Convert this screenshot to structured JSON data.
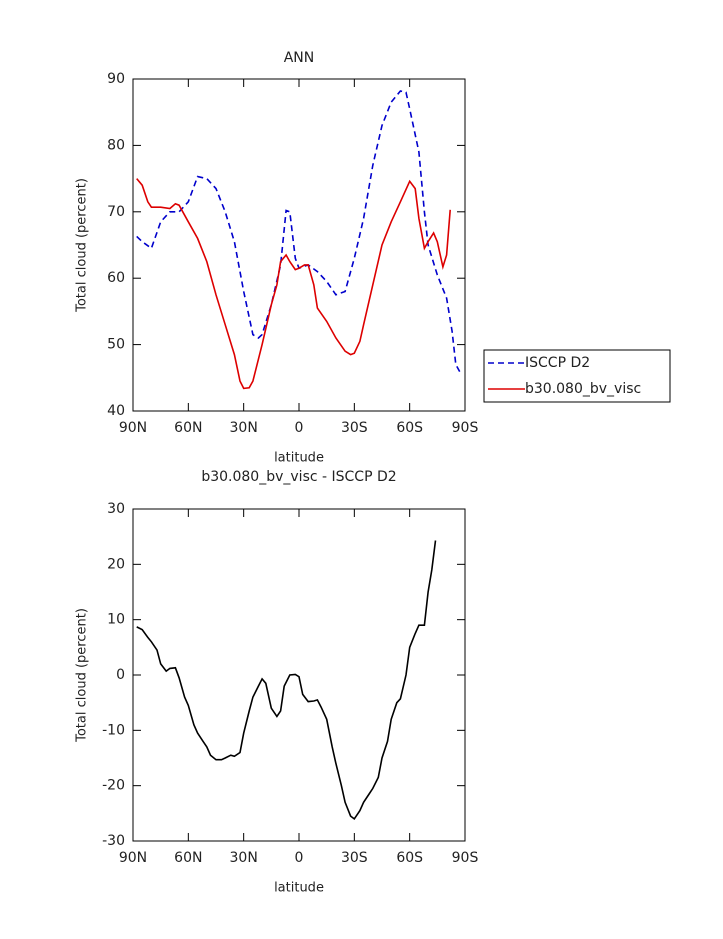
{
  "chart_data": [
    {
      "type": "line",
      "title": "ANN",
      "xlabel": "latitude",
      "ylabel": "Total cloud (percent)",
      "xlim": [
        90,
        -90
      ],
      "ylim": [
        40,
        90
      ],
      "xticks": [
        {
          "value": 90,
          "label": "90N"
        },
        {
          "value": 60,
          "label": "60N"
        },
        {
          "value": 30,
          "label": "30N"
        },
        0,
        {
          "value": -30,
          "label": "30S"
        },
        {
          "value": -60,
          "label": "60S"
        },
        {
          "value": -90,
          "label": "90S"
        }
      ],
      "yticks": [
        40,
        50,
        60,
        70,
        80,
        90
      ],
      "legend": "outside-right",
      "series": [
        {
          "name": "ISCCP D2",
          "color": "#0000cc",
          "line_style": "dashed",
          "x": [
            88,
            85,
            80,
            75,
            70,
            65,
            60,
            55,
            50,
            45,
            40,
            35,
            30,
            25,
            22,
            20,
            15,
            10,
            7,
            5,
            2,
            0,
            -5,
            -10,
            -15,
            -20,
            -25,
            -30,
            -35,
            -40,
            -45,
            -50,
            -55,
            -58,
            -60,
            -65,
            -68,
            -70,
            -75,
            -80,
            -83,
            -85,
            -88
          ],
          "values": [
            66.3,
            65.5,
            64.5,
            68.5,
            70,
            70,
            71.5,
            75.3,
            75,
            73.5,
            70,
            65.5,
            58,
            51.5,
            51,
            51.5,
            56,
            62,
            70.2,
            70,
            63,
            61.5,
            62,
            61,
            59.5,
            57.5,
            58,
            63,
            69,
            77,
            83,
            86.5,
            88.2,
            88,
            85.5,
            79,
            70,
            65,
            60.5,
            57,
            52,
            47,
            45.5
          ]
        },
        {
          "name": "b30.080_bv_visc",
          "color": "#dd0000",
          "line_style": "solid",
          "x": [
            88,
            85,
            82,
            80,
            75,
            70,
            67,
            65,
            60,
            55,
            50,
            45,
            40,
            35,
            32,
            30,
            27,
            25,
            20,
            15,
            12,
            10,
            7,
            5,
            2,
            0,
            -3,
            -5,
            -8,
            -10,
            -15,
            -20,
            -25,
            -28,
            -30,
            -33,
            -35,
            -40,
            -45,
            -50,
            -55,
            -60,
            -63,
            -65,
            -68,
            -70,
            -73,
            -75,
            -78,
            -80,
            -82
          ],
          "values": [
            75,
            74,
            71.5,
            70.7,
            70.7,
            70.5,
            71.2,
            71,
            68.5,
            66,
            62.5,
            57.5,
            53,
            48.5,
            44.5,
            43.4,
            43.5,
            44.5,
            50,
            56,
            59,
            62.5,
            63.5,
            62.5,
            61.3,
            61.5,
            62,
            62,
            59,
            55.5,
            53.5,
            51,
            49,
            48.5,
            48.7,
            50.5,
            53,
            59,
            65,
            68.5,
            71.5,
            74.6,
            73.5,
            69,
            64.5,
            65.5,
            66.8,
            65.5,
            61.7,
            63.5,
            70.3
          ]
        }
      ]
    },
    {
      "type": "line",
      "title": "b30.080_bv_visc - ISCCP D2",
      "xlabel": "latitude",
      "ylabel": "Total cloud (percent)",
      "xlim": [
        90,
        -90
      ],
      "ylim": [
        -30,
        30
      ],
      "xticks": [
        {
          "value": 90,
          "label": "90N"
        },
        {
          "value": 60,
          "label": "60N"
        },
        {
          "value": 30,
          "label": "30N"
        },
        0,
        {
          "value": -30,
          "label": "30S"
        },
        {
          "value": -60,
          "label": "60S"
        },
        {
          "value": -90,
          "label": "90S"
        }
      ],
      "yticks": [
        -30,
        -20,
        -10,
        0,
        10,
        20,
        30
      ],
      "series": [
        {
          "color": "#000000",
          "line_style": "solid",
          "x": [
            88,
            85,
            82,
            80,
            77,
            75,
            72,
            70,
            67,
            65,
            62,
            60,
            57,
            55,
            52,
            50,
            48,
            45,
            42,
            40,
            37,
            35,
            32,
            30,
            27,
            25,
            22,
            20,
            18,
            15,
            12,
            10,
            8,
            5,
            2,
            0,
            -2,
            -5,
            -8,
            -10,
            -12,
            -15,
            -18,
            -20,
            -23,
            -25,
            -28,
            -30,
            -33,
            -35,
            -38,
            -40,
            -43,
            -45,
            -48,
            -50,
            -53,
            -55,
            -58,
            -60,
            -63,
            -65,
            -68,
            -70,
            -72,
            -74
          ],
          "values": [
            8.7,
            8.2,
            6.8,
            6,
            4.5,
            2,
            0.7,
            1.2,
            1.3,
            -0.5,
            -4,
            -5.5,
            -9,
            -10.5,
            -12,
            -13,
            -14.5,
            -15.3,
            -15.3,
            -15,
            -14.5,
            -14.7,
            -14,
            -10.5,
            -6.5,
            -4,
            -2,
            -0.7,
            -1.5,
            -6,
            -7.5,
            -6.5,
            -2,
            0,
            0.1,
            -0.3,
            -3.5,
            -4.8,
            -4.7,
            -4.5,
            -5.8,
            -8,
            -13,
            -16,
            -20,
            -23,
            -25.5,
            -26,
            -24.5,
            -23,
            -21.5,
            -20.5,
            -18.5,
            -15,
            -12,
            -8,
            -5,
            -4.3,
            0,
            5,
            7.5,
            9,
            9,
            15,
            19,
            24.3
          ]
        }
      ]
    }
  ]
}
